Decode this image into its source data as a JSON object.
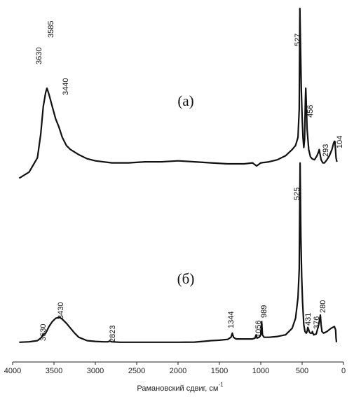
{
  "chart_data": {
    "type": "line",
    "xlabel": "Рамановский сдвиг, см",
    "xlabel_superscript": "-1",
    "xlim": [
      4000,
      0
    ],
    "x_reversed": true,
    "x_ticks": [
      4000,
      3500,
      3000,
      2500,
      2000,
      1500,
      1000,
      500,
      0
    ],
    "y_axis_shown": false,
    "grid": false,
    "series": [
      {
        "name": "(a)",
        "panel_label": "(а)",
        "peak_labels": [
          "3630",
          "3585",
          "3440",
          "527",
          "456",
          "293",
          "104"
        ],
        "x": [
          3920,
          3800,
          3700,
          3660,
          3630,
          3600,
          3585,
          3560,
          3520,
          3480,
          3440,
          3400,
          3350,
          3300,
          3200,
          3100,
          3000,
          2800,
          2600,
          2400,
          2200,
          2000,
          1800,
          1600,
          1400,
          1200,
          1100,
          1050,
          1000,
          900,
          800,
          700,
          620,
          580,
          550,
          535,
          527,
          520,
          510,
          500,
          490,
          480,
          470,
          465,
          460,
          456,
          450,
          440,
          420,
          400,
          380,
          350,
          320,
          300,
          293,
          285,
          270,
          250,
          230,
          200,
          170,
          140,
          120,
          110,
          104,
          100,
          90,
          80
        ],
        "y": [
          0.12,
          0.18,
          0.32,
          0.55,
          0.82,
          0.96,
          1.0,
          0.94,
          0.82,
          0.7,
          0.62,
          0.52,
          0.44,
          0.4,
          0.35,
          0.31,
          0.29,
          0.27,
          0.27,
          0.28,
          0.28,
          0.29,
          0.28,
          0.27,
          0.26,
          0.26,
          0.27,
          0.24,
          0.27,
          0.28,
          0.3,
          0.34,
          0.4,
          0.44,
          0.52,
          0.8,
          1.78,
          1.45,
          1.0,
          0.72,
          0.52,
          0.42,
          0.5,
          0.7,
          0.9,
          1.0,
          0.86,
          0.6,
          0.4,
          0.33,
          0.31,
          0.3,
          0.34,
          0.38,
          0.4,
          0.36,
          0.3,
          0.27,
          0.27,
          0.3,
          0.34,
          0.4,
          0.46,
          0.48,
          0.48,
          0.44,
          0.32,
          0.28
        ]
      },
      {
        "name": "(б)",
        "panel_label": "(б)",
        "peak_labels": [
          "3630",
          "3430",
          "2823",
          "1344",
          "1056",
          "989",
          "525",
          "431",
          "376",
          "280"
        ],
        "x": [
          3920,
          3800,
          3700,
          3660,
          3630,
          3600,
          3560,
          3520,
          3480,
          3440,
          3430,
          3400,
          3350,
          3300,
          3250,
          3200,
          3100,
          3000,
          2900,
          2850,
          2823,
          2800,
          2700,
          2500,
          2200,
          2000,
          1800,
          1700,
          1600,
          1500,
          1400,
          1360,
          1344,
          1330,
          1300,
          1200,
          1100,
          1070,
          1056,
          1045,
          1020,
          1000,
          989,
          980,
          960,
          900,
          800,
          700,
          620,
          580,
          550,
          535,
          525,
          515,
          505,
          495,
          480,
          465,
          450,
          440,
          431,
          420,
          410,
          400,
          390,
          380,
          376,
          370,
          360,
          330,
          300,
          290,
          280,
          270,
          260,
          240,
          200,
          150,
          110,
          95,
          90,
          85
        ],
        "y": [
          0.01,
          0.015,
          0.03,
          0.06,
          0.1,
          0.12,
          0.2,
          0.26,
          0.3,
          0.31,
          0.31,
          0.29,
          0.24,
          0.18,
          0.12,
          0.07,
          0.03,
          0.02,
          0.015,
          0.015,
          0.025,
          0.015,
          0.01,
          0.01,
          0.01,
          0.01,
          0.012,
          0.02,
          0.03,
          0.035,
          0.045,
          0.07,
          0.12,
          0.07,
          0.05,
          0.05,
          0.05,
          0.06,
          0.1,
          0.06,
          0.07,
          0.1,
          0.26,
          0.1,
          0.07,
          0.07,
          0.08,
          0.1,
          0.18,
          0.3,
          0.55,
          0.9,
          2.18,
          1.3,
          0.8,
          0.5,
          0.22,
          0.14,
          0.12,
          0.14,
          0.19,
          0.16,
          0.13,
          0.12,
          0.12,
          0.12,
          0.14,
          0.12,
          0.1,
          0.11,
          0.22,
          0.28,
          0.34,
          0.22,
          0.14,
          0.12,
          0.14,
          0.18,
          0.2,
          0.16,
          0.06,
          0.01
        ]
      }
    ]
  }
}
